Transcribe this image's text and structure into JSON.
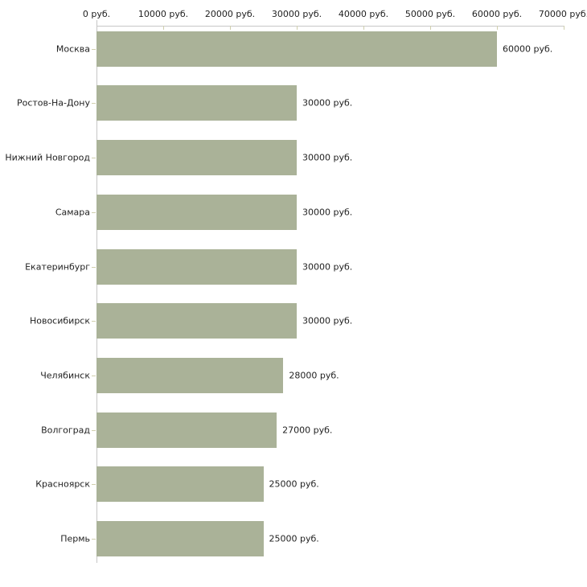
{
  "chart_data": {
    "type": "bar",
    "orientation": "horizontal",
    "title": "",
    "xlabel": "",
    "ylabel": "",
    "xlim": [
      0,
      70000
    ],
    "x_unit": "руб.",
    "grid": false,
    "legend": false,
    "x_ticks": [
      {
        "value": 0,
        "label": "0 руб."
      },
      {
        "value": 10000,
        "label": "10000 руб."
      },
      {
        "value": 20000,
        "label": "20000 руб."
      },
      {
        "value": 30000,
        "label": "30000 руб."
      },
      {
        "value": 40000,
        "label": "40000 руб."
      },
      {
        "value": 50000,
        "label": "50000 руб."
      },
      {
        "value": 60000,
        "label": "60000 руб."
      },
      {
        "value": 70000,
        "label": "70000 руб."
      }
    ],
    "rows": [
      {
        "category": "Москва",
        "value": 60000,
        "value_label": "60000 руб."
      },
      {
        "category": "Ростов-На-Дону",
        "value": 30000,
        "value_label": "30000 руб."
      },
      {
        "category": "Нижний Новгород",
        "value": 30000,
        "value_label": "30000 руб."
      },
      {
        "category": "Самара",
        "value": 30000,
        "value_label": "30000 руб."
      },
      {
        "category": "Екатеринбург",
        "value": 30000,
        "value_label": "30000 руб."
      },
      {
        "category": "Новосибирск",
        "value": 30000,
        "value_label": "30000 руб."
      },
      {
        "category": "Челябинск",
        "value": 28000,
        "value_label": "28000 руб."
      },
      {
        "category": "Волгоград",
        "value": 27000,
        "value_label": "27000 руб."
      },
      {
        "category": "Красноярск",
        "value": 25000,
        "value_label": "25000 руб."
      },
      {
        "category": "Пермь",
        "value": 25000,
        "value_label": "25000 руб."
      }
    ],
    "colors": {
      "bar": "#aab298",
      "axis_line": "#c6c6c6",
      "tick_mark": "#d0cfae",
      "label_text": "#1f1f1f"
    }
  }
}
